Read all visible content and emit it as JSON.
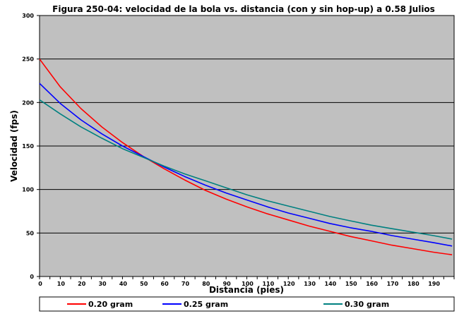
{
  "chart_data": {
    "type": "line",
    "title": "Figura 250-04: velocidad de la bola vs. distancia (con y sin hop-up) a 0.58 Julios",
    "xlabel": "Distancia (pies)",
    "ylabel": "Velocidad (fps)",
    "xlim": [
      0,
      200
    ],
    "ylim": [
      0,
      300
    ],
    "x_ticks": [
      0,
      10,
      20,
      30,
      40,
      50,
      60,
      70,
      80,
      90,
      100,
      110,
      120,
      130,
      140,
      150,
      160,
      170,
      180,
      190
    ],
    "y_ticks": [
      0,
      50,
      100,
      150,
      200,
      250,
      300
    ],
    "grid": "horizontal",
    "legend_position": "bottom",
    "x": [
      0,
      10,
      20,
      30,
      40,
      50,
      60,
      70,
      80,
      90,
      100,
      110,
      120,
      130,
      140,
      150,
      160,
      170,
      180,
      190,
      199
    ],
    "series": [
      {
        "name": "0.20 gram",
        "color": "#ff0000",
        "values": [
          250,
          218,
          193,
          172,
          154,
          138,
          124,
          111,
          99,
          89,
          80,
          72,
          65,
          58,
          52,
          46,
          41,
          36,
          32,
          28,
          25
        ]
      },
      {
        "name": "0.25 gram",
        "color": "#0000ff",
        "values": [
          222,
          199,
          180,
          164,
          150,
          138,
          126,
          115,
          105,
          96,
          88,
          80,
          73,
          67,
          61,
          56,
          52,
          47,
          43,
          39,
          35
        ]
      },
      {
        "name": "0.30 gram",
        "color": "#008080",
        "values": [
          203,
          187,
          172,
          159,
          147,
          137,
          127,
          118,
          110,
          102,
          94,
          87,
          81,
          75,
          69,
          64,
          59,
          55,
          51,
          47,
          43
        ]
      }
    ]
  },
  "colors": {
    "plot_background": "#c0c0c0",
    "grid": "#000000",
    "axis": "#000000"
  }
}
